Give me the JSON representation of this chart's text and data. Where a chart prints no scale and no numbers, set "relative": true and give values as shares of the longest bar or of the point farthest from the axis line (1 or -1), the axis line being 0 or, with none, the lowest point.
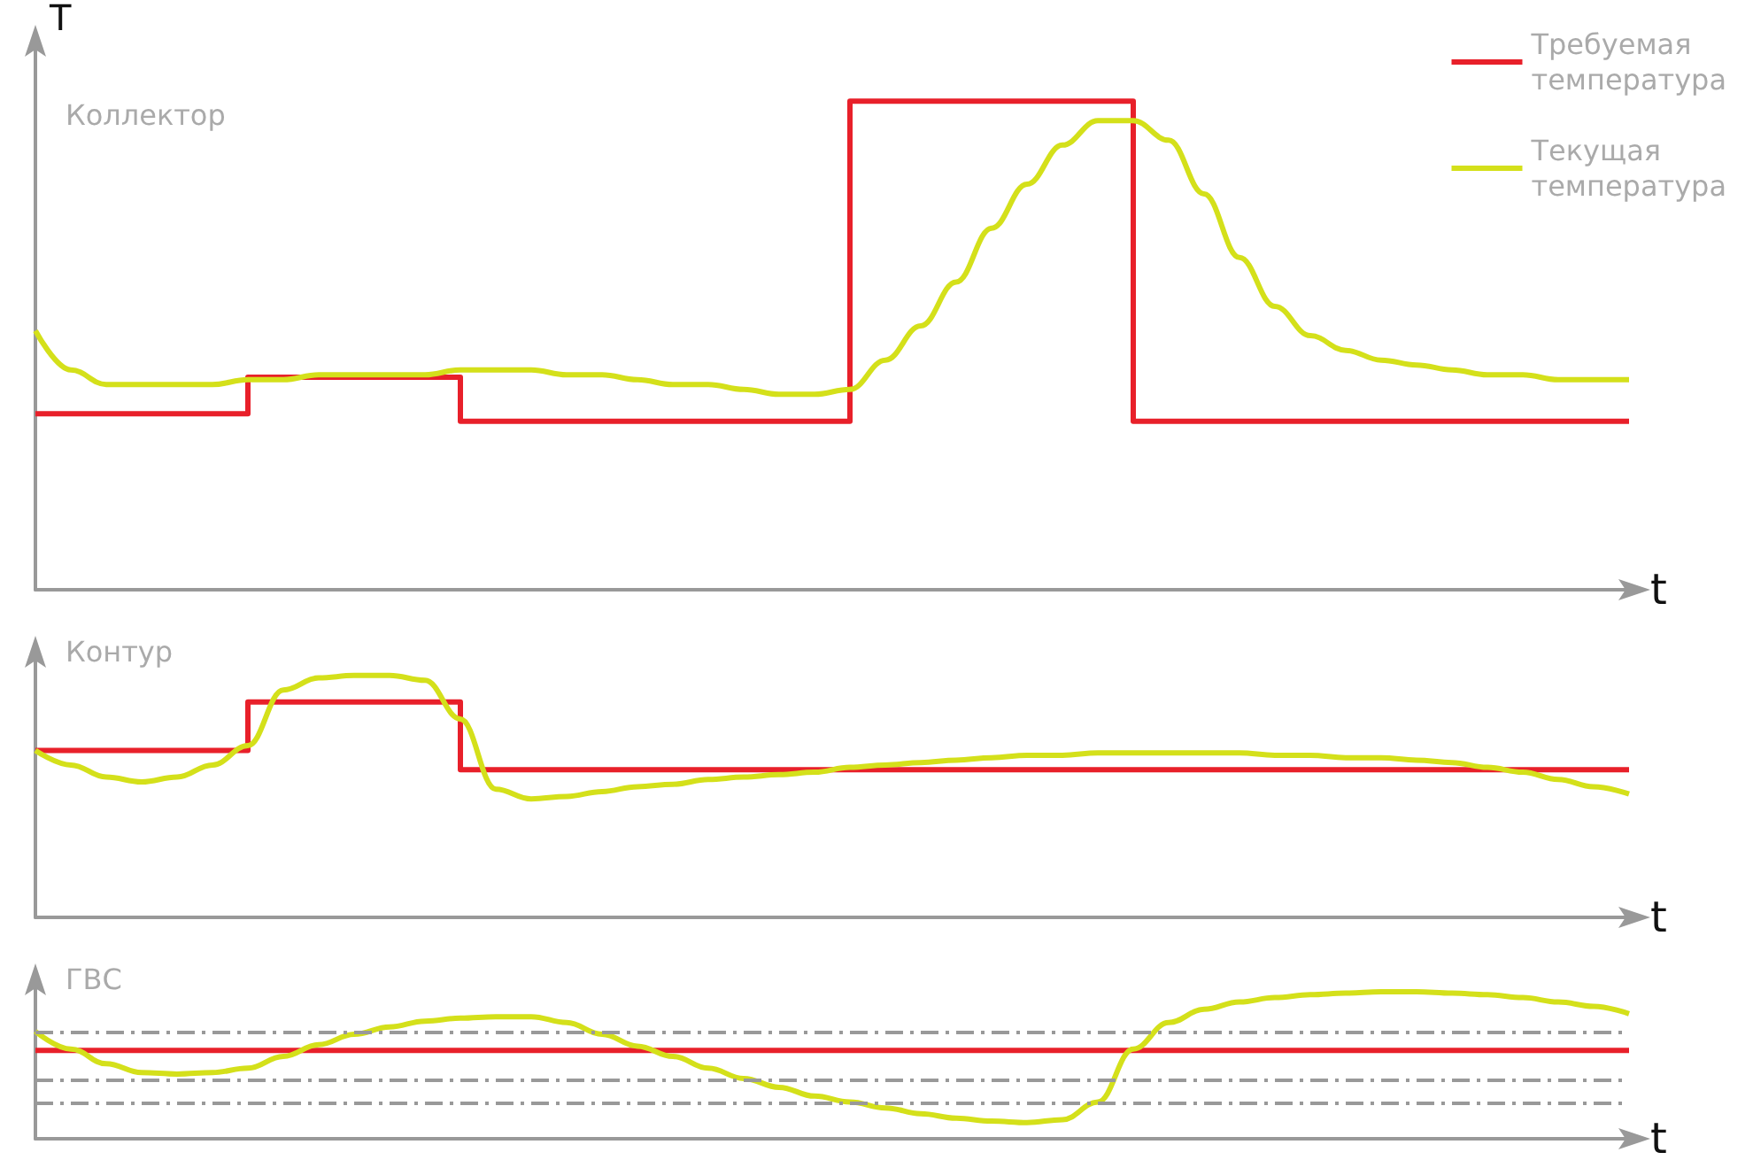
{
  "chart_data": [
    {
      "type": "line",
      "title": "Коллектор",
      "xlabel": "t",
      "ylabel": "T",
      "relative": true,
      "grid": false,
      "marker": "none",
      "legend": "top right",
      "categories": [
        null,
        null,
        null,
        null,
        null,
        null,
        null,
        null,
        null,
        null,
        null,
        null,
        null,
        null,
        null,
        null,
        null,
        null,
        null,
        null,
        null,
        null,
        null,
        null,
        null,
        null,
        null,
        null,
        null,
        null,
        null,
        null,
        null,
        null,
        null,
        null,
        null,
        null,
        null,
        null,
        null,
        null,
        null,
        null,
        null,
        null
      ],
      "series": [
        {
          "name": "Требуемая температура",
          "type": "step",
          "color": "#e8202a",
          "values": [
            0.36,
            0.36,
            0.36,
            0.36,
            0.36,
            0.36,
            0.435,
            0.435,
            0.435,
            0.435,
            0.435,
            0.435,
            0.345,
            0.345,
            0.345,
            0.345,
            0.345,
            0.345,
            0.345,
            0.345,
            0.345,
            0.345,
            0.345,
            1,
            1,
            1,
            1,
            1,
            1,
            1,
            1,
            0.345,
            0.345,
            0.345,
            0.345,
            0.345,
            0.345,
            0.345,
            0.345,
            0.345,
            0.345,
            0.345,
            0.345,
            0.345,
            0.345,
            0.345
          ]
        },
        {
          "name": "Текущая температура",
          "type": "line",
          "color": "#d4e01a",
          "values": [
            0.53,
            0.45,
            0.42,
            0.42,
            0.42,
            0.42,
            0.43,
            0.43,
            0.44,
            0.44,
            0.44,
            0.44,
            0.45,
            0.45,
            0.45,
            0.44,
            0.44,
            0.43,
            0.42,
            0.42,
            0.41,
            0.4,
            0.4,
            0.41,
            0.47,
            0.54,
            0.63,
            0.74,
            0.83,
            0.91,
            0.96,
            0.96,
            0.92,
            0.81,
            0.68,
            0.58,
            0.52,
            0.49,
            0.47,
            0.46,
            0.45,
            0.44,
            0.44,
            0.43,
            0.43,
            0.43
          ]
        }
      ]
    },
    {
      "type": "line",
      "title": "Контур",
      "xlabel": "t",
      "relative": true,
      "grid": false,
      "marker": "none",
      "categories": [
        null,
        null,
        null,
        null,
        null,
        null,
        null,
        null,
        null,
        null,
        null,
        null,
        null,
        null,
        null,
        null,
        null,
        null,
        null,
        null,
        null,
        null,
        null,
        null,
        null,
        null,
        null,
        null,
        null,
        null,
        null,
        null,
        null,
        null,
        null,
        null,
        null,
        null,
        null,
        null,
        null,
        null,
        null,
        null,
        null,
        null
      ],
      "series": [
        {
          "type": "step",
          "color": "#e8202a",
          "values": [
            0.69,
            0.69,
            0.69,
            0.69,
            0.69,
            0.69,
            0.89,
            0.89,
            0.89,
            0.89,
            0.89,
            0.89,
            0.61,
            0.61,
            0.61,
            0.61,
            0.61,
            0.61,
            0.61,
            0.61,
            0.61,
            0.61,
            0.61,
            0.61,
            0.61,
            0.61,
            0.61,
            0.61,
            0.61,
            0.61,
            0.61,
            0.61,
            0.61,
            0.61,
            0.61,
            0.61,
            0.61,
            0.61,
            0.61,
            0.61,
            0.61,
            0.61,
            0.61,
            0.61,
            0.61,
            0.61
          ]
        },
        {
          "type": "line",
          "color": "#d4e01a",
          "values": [
            0.69,
            0.63,
            0.58,
            0.56,
            0.58,
            0.63,
            0.71,
            0.94,
            0.99,
            1,
            1,
            0.98,
            0.82,
            0.53,
            0.49,
            0.5,
            0.52,
            0.54,
            0.55,
            0.57,
            0.58,
            0.59,
            0.6,
            0.62,
            0.63,
            0.64,
            0.65,
            0.66,
            0.67,
            0.67,
            0.68,
            0.68,
            0.68,
            0.68,
            0.68,
            0.67,
            0.67,
            0.66,
            0.66,
            0.65,
            0.64,
            0.62,
            0.6,
            0.57,
            0.54,
            0.51
          ]
        }
      ]
    },
    {
      "type": "line",
      "title": "ГВС",
      "xlabel": "t",
      "relative": true,
      "grid": false,
      "marker": "none",
      "categories": [
        null,
        null,
        null,
        null,
        null,
        null,
        null,
        null,
        null,
        null,
        null,
        null,
        null,
        null,
        null,
        null,
        null,
        null,
        null,
        null,
        null,
        null,
        null,
        null,
        null,
        null,
        null,
        null,
        null,
        null,
        null,
        null,
        null,
        null,
        null,
        null,
        null,
        null,
        null,
        null,
        null,
        null,
        null,
        null,
        null,
        null
      ],
      "ref_lines": [
        {
          "axis": "y",
          "value": 0.73,
          "color": "#999999",
          "line_style": "dashed"
        },
        {
          "axis": "y",
          "value": 0.4,
          "color": "#999999",
          "line_style": "dashed"
        },
        {
          "axis": "y",
          "value": 0.24,
          "color": "#999999",
          "line_style": "dashed"
        }
      ],
      "series": [
        {
          "type": "line",
          "color": "#e8202a",
          "values": [
            0.6,
            0.6,
            0.6,
            0.6,
            0.6,
            0.6,
            0.6,
            0.6,
            0.6,
            0.6,
            0.6,
            0.6,
            0.6,
            0.6,
            0.6,
            0.6,
            0.6,
            0.6,
            0.6,
            0.6,
            0.6,
            0.6,
            0.6,
            0.6,
            0.6,
            0.6,
            0.6,
            0.6,
            0.6,
            0.6,
            0.6,
            0.6,
            0.6,
            0.6,
            0.6,
            0.6,
            0.6,
            0.6,
            0.6,
            0.6,
            0.6,
            0.6,
            0.6,
            0.6,
            0.6,
            0.6
          ]
        },
        {
          "type": "line",
          "color": "#d4e01a",
          "values": [
            0.73,
            0.61,
            0.51,
            0.45,
            0.44,
            0.45,
            0.48,
            0.56,
            0.64,
            0.71,
            0.76,
            0.8,
            0.82,
            0.83,
            0.83,
            0.79,
            0.71,
            0.63,
            0.56,
            0.48,
            0.41,
            0.35,
            0.29,
            0.25,
            0.21,
            0.17,
            0.14,
            0.12,
            0.11,
            0.13,
            0.25,
            0.61,
            0.79,
            0.88,
            0.93,
            0.96,
            0.98,
            0.99,
            1,
            1,
            0.99,
            0.98,
            0.96,
            0.93,
            0.9,
            0.85
          ]
        }
      ]
    }
  ]
}
